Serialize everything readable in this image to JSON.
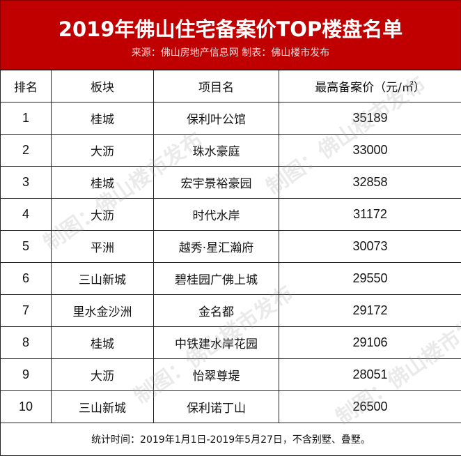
{
  "header": {
    "title": "2019年佛山住宅备案价TOP楼盘名单",
    "subtitle": "来源：佛山房地产信息网 制表：佛山楼市发布"
  },
  "columns": [
    "排名",
    "板块",
    "项目名",
    "最高备案价（元/㎡）"
  ],
  "rows": [
    {
      "rank": "1",
      "district": "桂城",
      "project": "保利叶公馆",
      "price": "35189"
    },
    {
      "rank": "2",
      "district": "大沥",
      "project": "珠水豪庭",
      "price": "33000"
    },
    {
      "rank": "3",
      "district": "桂城",
      "project": "宏宇景裕豪园",
      "price": "32858"
    },
    {
      "rank": "4",
      "district": "大沥",
      "project": "时代水岸",
      "price": "31172"
    },
    {
      "rank": "5",
      "district": "平洲",
      "project": "越秀·星汇瀚府",
      "price": "30073"
    },
    {
      "rank": "6",
      "district": "三山新城",
      "project": "碧桂园广佛上城",
      "price": "29550"
    },
    {
      "rank": "7",
      "district": "里水金沙洲",
      "project": "金名都",
      "price": "29172"
    },
    {
      "rank": "8",
      "district": "桂城",
      "project": "中铁建水岸花园",
      "price": "29106"
    },
    {
      "rank": "9",
      "district": "大沥",
      "project": "怡翠尊堤",
      "price": "28051"
    },
    {
      "rank": "10",
      "district": "三山新城",
      "project": "保利诺丁山",
      "price": "26500"
    }
  ],
  "footer": "统计时间：2019年1月1日-2019年5月27日，不含别墅、叠墅。",
  "watermark": "制图：佛山楼市发布",
  "colors": {
    "header_bg": "#c00000",
    "header_text": "#ffffff"
  }
}
